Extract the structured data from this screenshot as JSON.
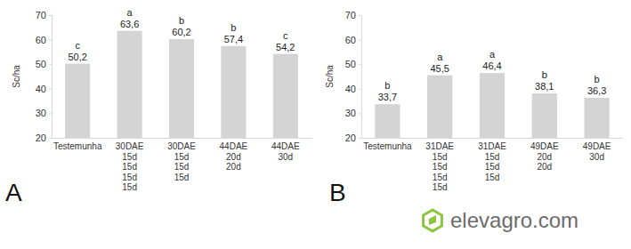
{
  "chart_data": [
    {
      "type": "bar",
      "title": "A",
      "y_label": "Sc/ha",
      "categories": [
        "Testemunha",
        "30DAE\n15d\n15d\n15d\n15d",
        "30DAE\n15d\n15d\n15d",
        "44DAE\n20d\n20d",
        "44DAE\n30d"
      ],
      "values": [
        50.2,
        63.6,
        60.2,
        57.4,
        54.2
      ],
      "value_labels": [
        "50,2",
        "63,6",
        "60,2",
        "57,4",
        "54,2"
      ],
      "annotations": [
        "c",
        "a",
        "b",
        "b",
        "c"
      ],
      "color": "#d4d4d4",
      "ylim": [
        20,
        70
      ],
      "yticks": [
        20,
        30,
        40,
        50,
        60,
        70
      ],
      "grid": false,
      "data_labels": true
    },
    {
      "type": "bar",
      "title": "B",
      "y_label": "Sc/ha",
      "categories": [
        "Testemunha",
        "31DAE\n15d\n15d\n15d\n15d",
        "31DAE\n15d\n15d\n15d",
        "49DAE\n20d\n20d",
        "49DAE\n30d"
      ],
      "values": [
        33.7,
        45.5,
        46.4,
        38.1,
        36.3
      ],
      "value_labels": [
        "33,7",
        "45,5",
        "46,4",
        "38,1",
        "36,3"
      ],
      "annotations": [
        "b",
        "a",
        "a",
        "b",
        "b"
      ],
      "color": "#d4d4d4",
      "ylim": [
        20,
        70
      ],
      "yticks": [
        20,
        30,
        40,
        50,
        60,
        70
      ],
      "grid": false,
      "data_labels": true
    }
  ],
  "logo": "elevagro.com"
}
